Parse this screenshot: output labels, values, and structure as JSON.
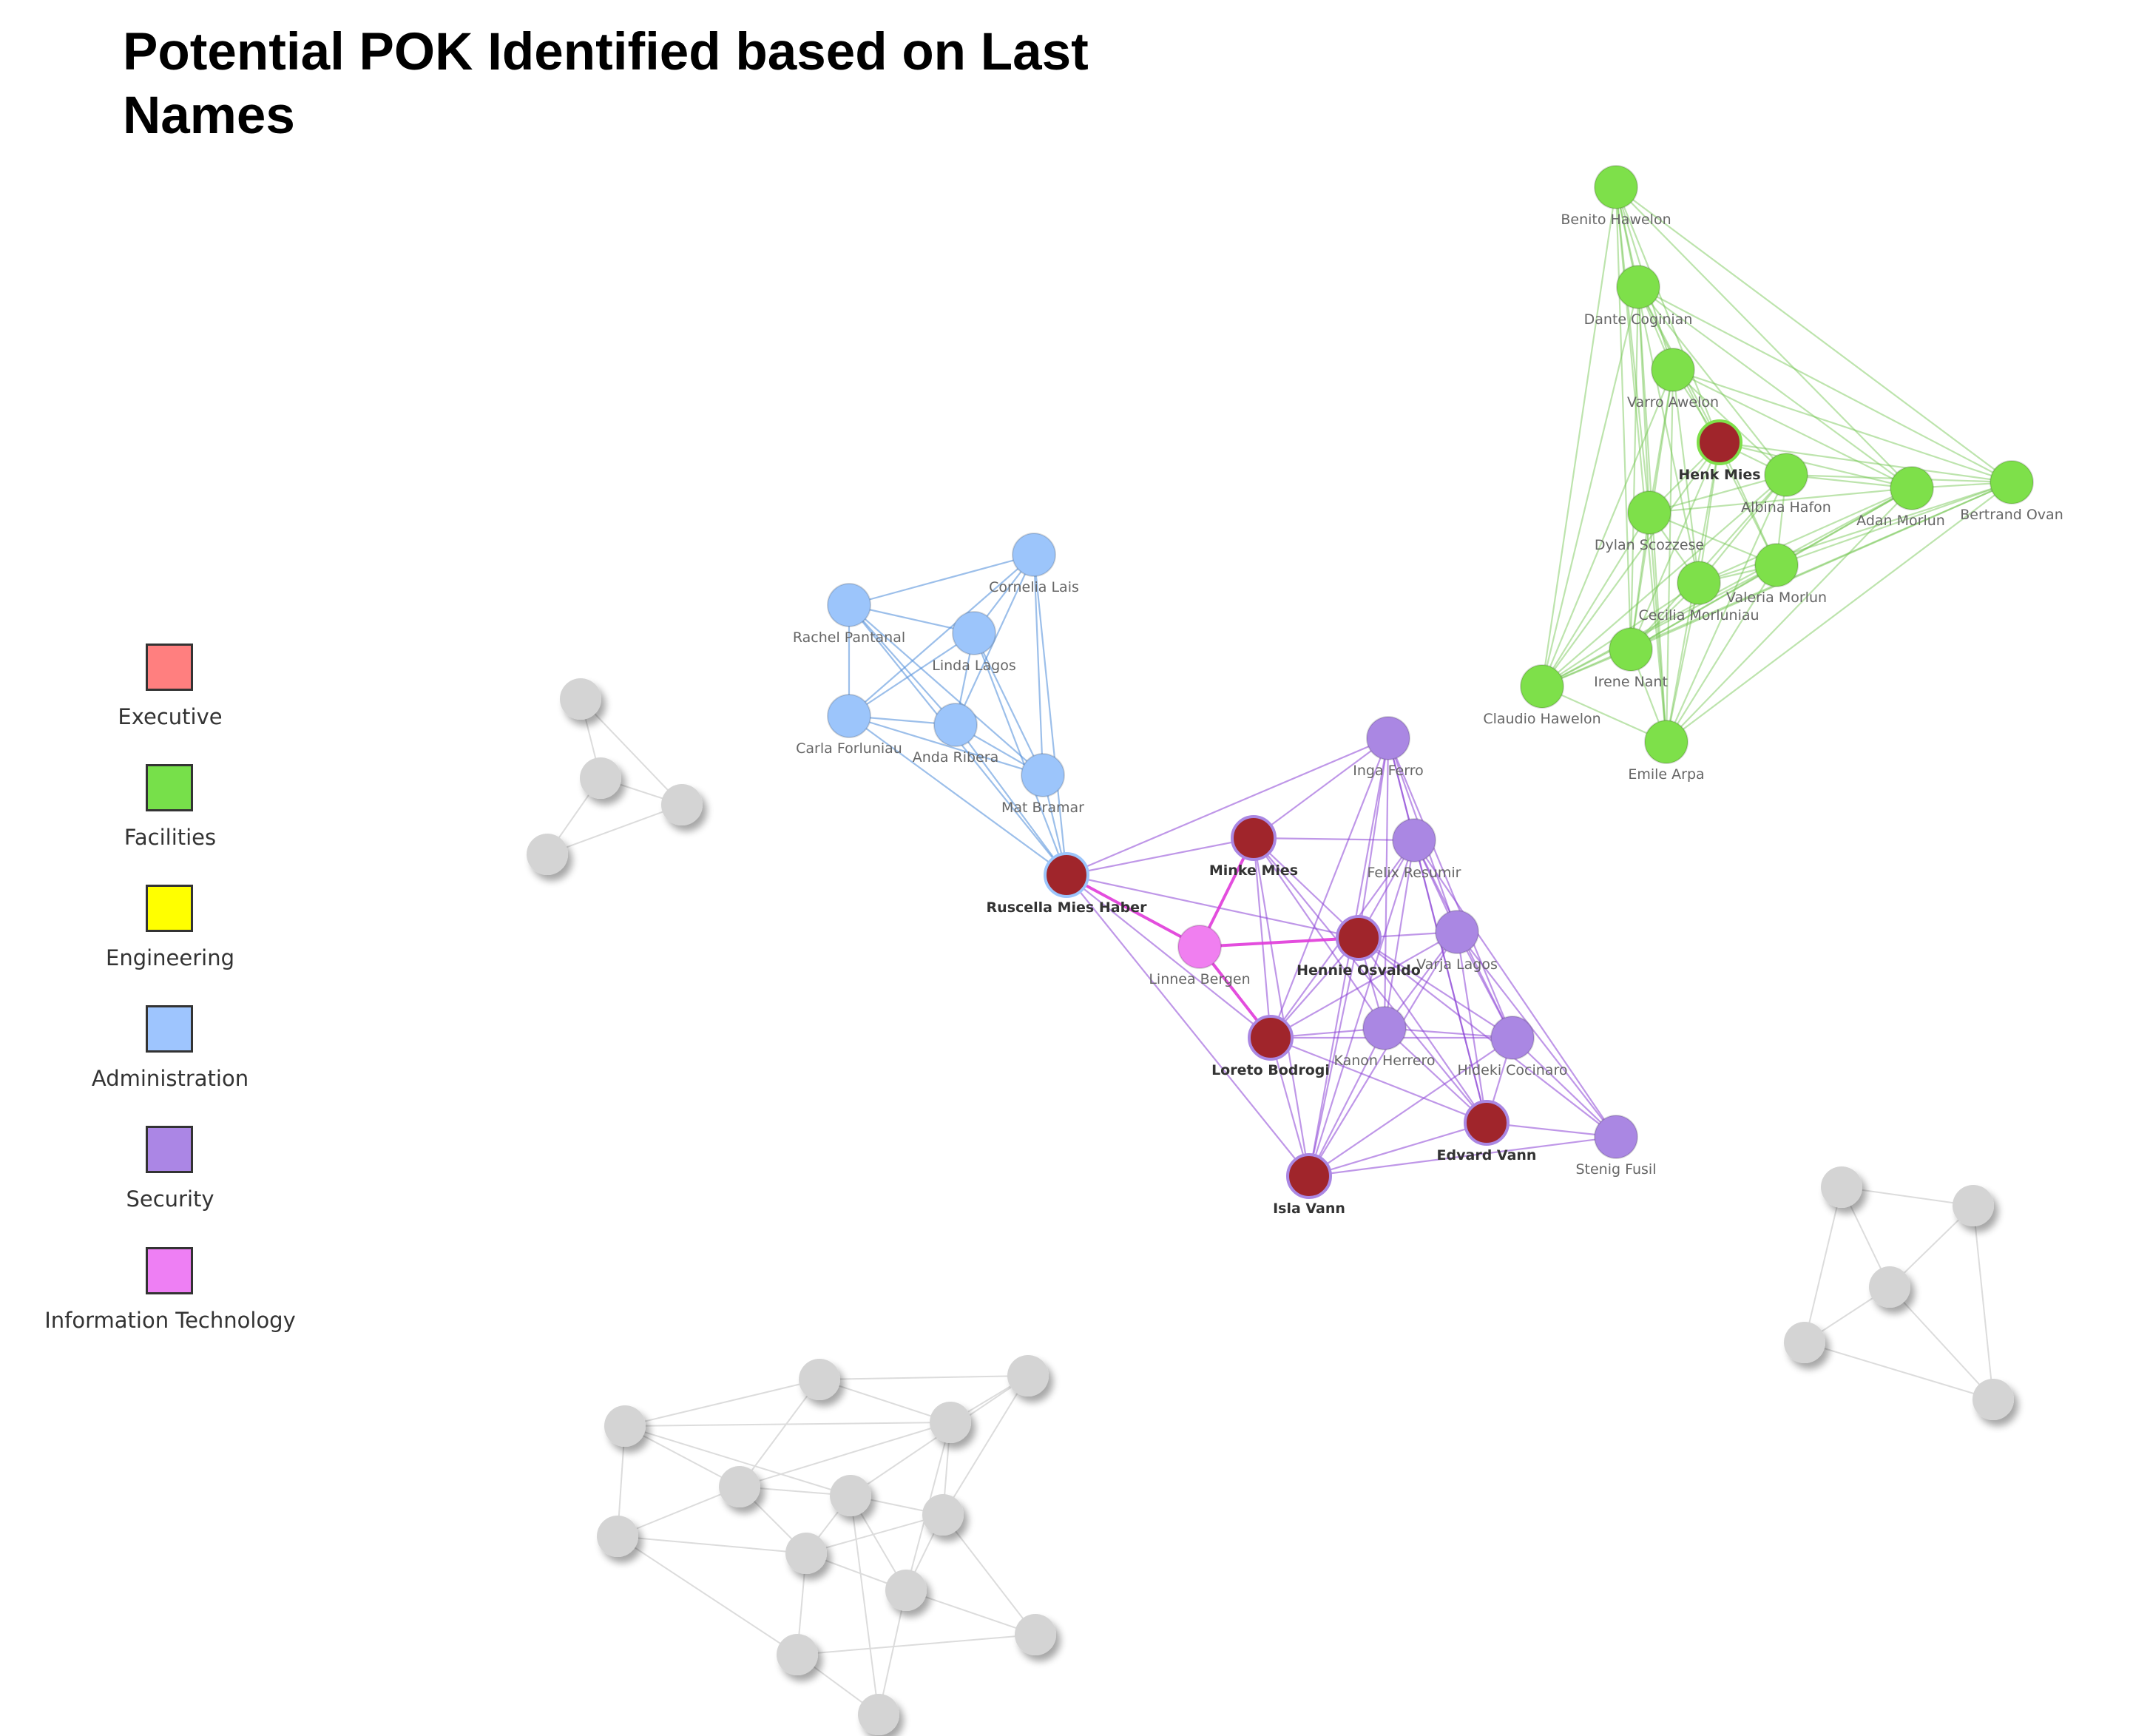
{
  "title": "Potential POK Identified based on Last Names",
  "colors": {
    "executive_node": "#a0252b",
    "facilities": "#7ee04a",
    "administration": "#9cc5fb",
    "security": "#aa87e3",
    "it": "#f07ff0",
    "grey": "#d4d4d4"
  },
  "legend": [
    {
      "label": "Executive",
      "color": "#ff7f7f"
    },
    {
      "label": "Facilities",
      "color": "#77e04a"
    },
    {
      "label": "Engineering",
      "color": "#ffff00"
    },
    {
      "label": "Administration",
      "color": "#9ec5fe"
    },
    {
      "label": "Security",
      "color": "#ab86e5"
    },
    {
      "label": "Information Technology",
      "color": "#ee7ff4"
    }
  ],
  "nodes": [
    {
      "id": "benito",
      "label": "Benito Hawelon",
      "group": "facilities"
    },
    {
      "id": "dante",
      "label": "Dante Coginian",
      "group": "facilities"
    },
    {
      "id": "varro",
      "label": "Varro Awelon",
      "group": "facilities"
    },
    {
      "id": "henk",
      "label": "Henk Mies",
      "group": "facilities",
      "exec": true
    },
    {
      "id": "albina",
      "label": "Albina Hafon",
      "group": "facilities"
    },
    {
      "id": "adan",
      "label": "Adan Morlun",
      "group": "facilities"
    },
    {
      "id": "bertrand",
      "label": "Bertrand Ovan",
      "group": "facilities"
    },
    {
      "id": "dylan",
      "label": "Dylan Scozzese",
      "group": "facilities"
    },
    {
      "id": "valeria",
      "label": "Valeria Morlun",
      "group": "facilities"
    },
    {
      "id": "cecilia",
      "label": "Cecilia Morluniau",
      "group": "facilities"
    },
    {
      "id": "irene",
      "label": "Irene Nant",
      "group": "facilities"
    },
    {
      "id": "claudio",
      "label": "Claudio Hawelon",
      "group": "facilities"
    },
    {
      "id": "emile",
      "label": "Emile Arpa",
      "group": "facilities"
    },
    {
      "id": "cornelia",
      "label": "Cornelia Lais",
      "group": "administration"
    },
    {
      "id": "rachel",
      "label": "Rachel Pantanal",
      "group": "administration"
    },
    {
      "id": "linda",
      "label": "Linda Lagos",
      "group": "administration"
    },
    {
      "id": "carla",
      "label": "Carla Forluniau",
      "group": "administration"
    },
    {
      "id": "anda",
      "label": "Anda Ribera",
      "group": "administration"
    },
    {
      "id": "mat",
      "label": "Mat Bramar",
      "group": "administration"
    },
    {
      "id": "ruscella",
      "label": "Ruscella Mies Haber",
      "group": "administration",
      "exec": true
    },
    {
      "id": "inga",
      "label": "Inga Ferro",
      "group": "security"
    },
    {
      "id": "minke",
      "label": "Minke Mies",
      "group": "security",
      "exec": true
    },
    {
      "id": "felix",
      "label": "Felix Resumir",
      "group": "security"
    },
    {
      "id": "linnea",
      "label": "Linnea Bergen",
      "group": "it"
    },
    {
      "id": "hennie",
      "label": "Hennie Osvaldo",
      "group": "security",
      "exec": true
    },
    {
      "id": "varja",
      "label": "Varja Lagos",
      "group": "security"
    },
    {
      "id": "loreto",
      "label": "Loreto Bodrogi",
      "group": "security",
      "exec": true
    },
    {
      "id": "kanon",
      "label": "Kanon Herrero",
      "group": "security"
    },
    {
      "id": "hideki",
      "label": "Hideki Cocinaro",
      "group": "security"
    },
    {
      "id": "edvard",
      "label": "Edvard Vann",
      "group": "security",
      "exec": true
    },
    {
      "id": "stenig",
      "label": "Stenig Fusil",
      "group": "security"
    },
    {
      "id": "isla",
      "label": "Isla Vann",
      "group": "security",
      "exec": true
    }
  ]
}
